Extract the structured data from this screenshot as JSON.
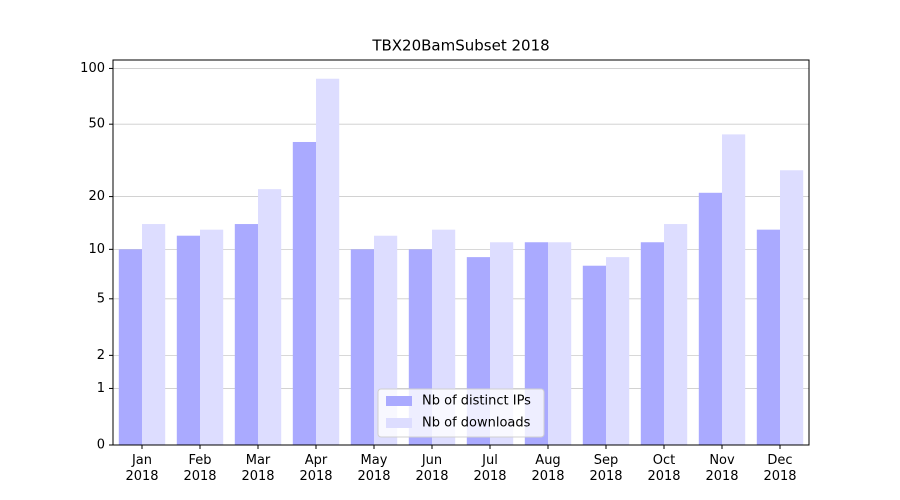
{
  "chart_data": {
    "type": "bar",
    "title": "TBX20BamSubset 2018",
    "categories": [
      "Jan\n2018",
      "Feb\n2018",
      "Mar\n2018",
      "Apr\n2018",
      "May\n2018",
      "Jun\n2018",
      "Jul\n2018",
      "Aug\n2018",
      "Sep\n2018",
      "Oct\n2018",
      "Nov\n2018",
      "Dec\n2018"
    ],
    "series": [
      {
        "name": "Nb of distinct IPs",
        "color": "#aaaaff",
        "values": [
          10,
          12,
          14,
          40,
          10,
          10,
          9,
          11,
          8,
          11,
          21,
          13
        ]
      },
      {
        "name": "Nb of downloads",
        "color": "#ddddff",
        "values": [
          14,
          13,
          22,
          88,
          12,
          13,
          11,
          11,
          9,
          14,
          44,
          28
        ]
      }
    ],
    "yscale": "log1p",
    "ylim": [
      0,
      111
    ],
    "yticks": [
      0,
      1,
      2,
      5,
      10,
      20,
      50,
      100
    ],
    "grid": true,
    "legend": "lower center"
  }
}
